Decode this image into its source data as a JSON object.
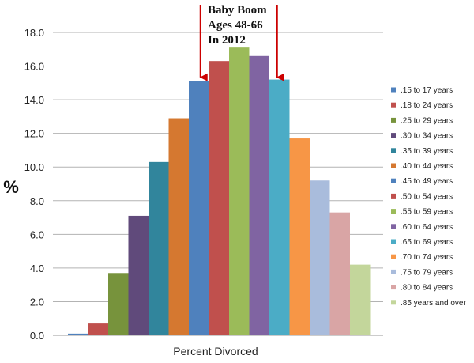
{
  "chart_data": {
    "type": "bar",
    "categories": [
      ".15 to 17 years",
      ".18 to 24 years",
      ".25 to 29 years",
      ".30 to 34 years",
      ".35 to 39 years",
      ".40 to 44 years",
      ".45 to 49 years",
      ".50 to 54 years",
      ".55 to 59 years",
      ".60 to 64 years",
      ".65 to 69 years",
      ".70 to 74 years",
      ".75 to 79 years",
      ".80 to 84 years",
      ".85 years and over"
    ],
    "values": [
      0.1,
      0.7,
      3.7,
      7.1,
      10.3,
      12.9,
      15.1,
      16.3,
      17.1,
      16.6,
      15.2,
      11.7,
      9.2,
      7.3,
      4.2
    ],
    "colors": [
      "#4f81bd",
      "#c0504d",
      "#77933c",
      "#604a7b",
      "#31859c",
      "#d57830",
      "#4f81bd",
      "#c0504d",
      "#9bbb59",
      "#8064a2",
      "#4bacc6",
      "#f79646",
      "#a9bcdc",
      "#d9a5a5",
      "#c3d69b"
    ],
    "xlabel": "Percent Divorced",
    "ylabel": "%",
    "yticks": [
      "0.0",
      "2.0",
      "4.0",
      "6.0",
      "8.0",
      "10.0",
      "12.0",
      "14.0",
      "16.0",
      "18.0"
    ],
    "ylim": [
      0,
      18
    ],
    "grid": true,
    "legend_position": "right",
    "annotation": {
      "lines": [
        "Baby Boom",
        "Ages 48-66",
        "In 2012"
      ],
      "arrow_color": "#cc0000"
    }
  }
}
